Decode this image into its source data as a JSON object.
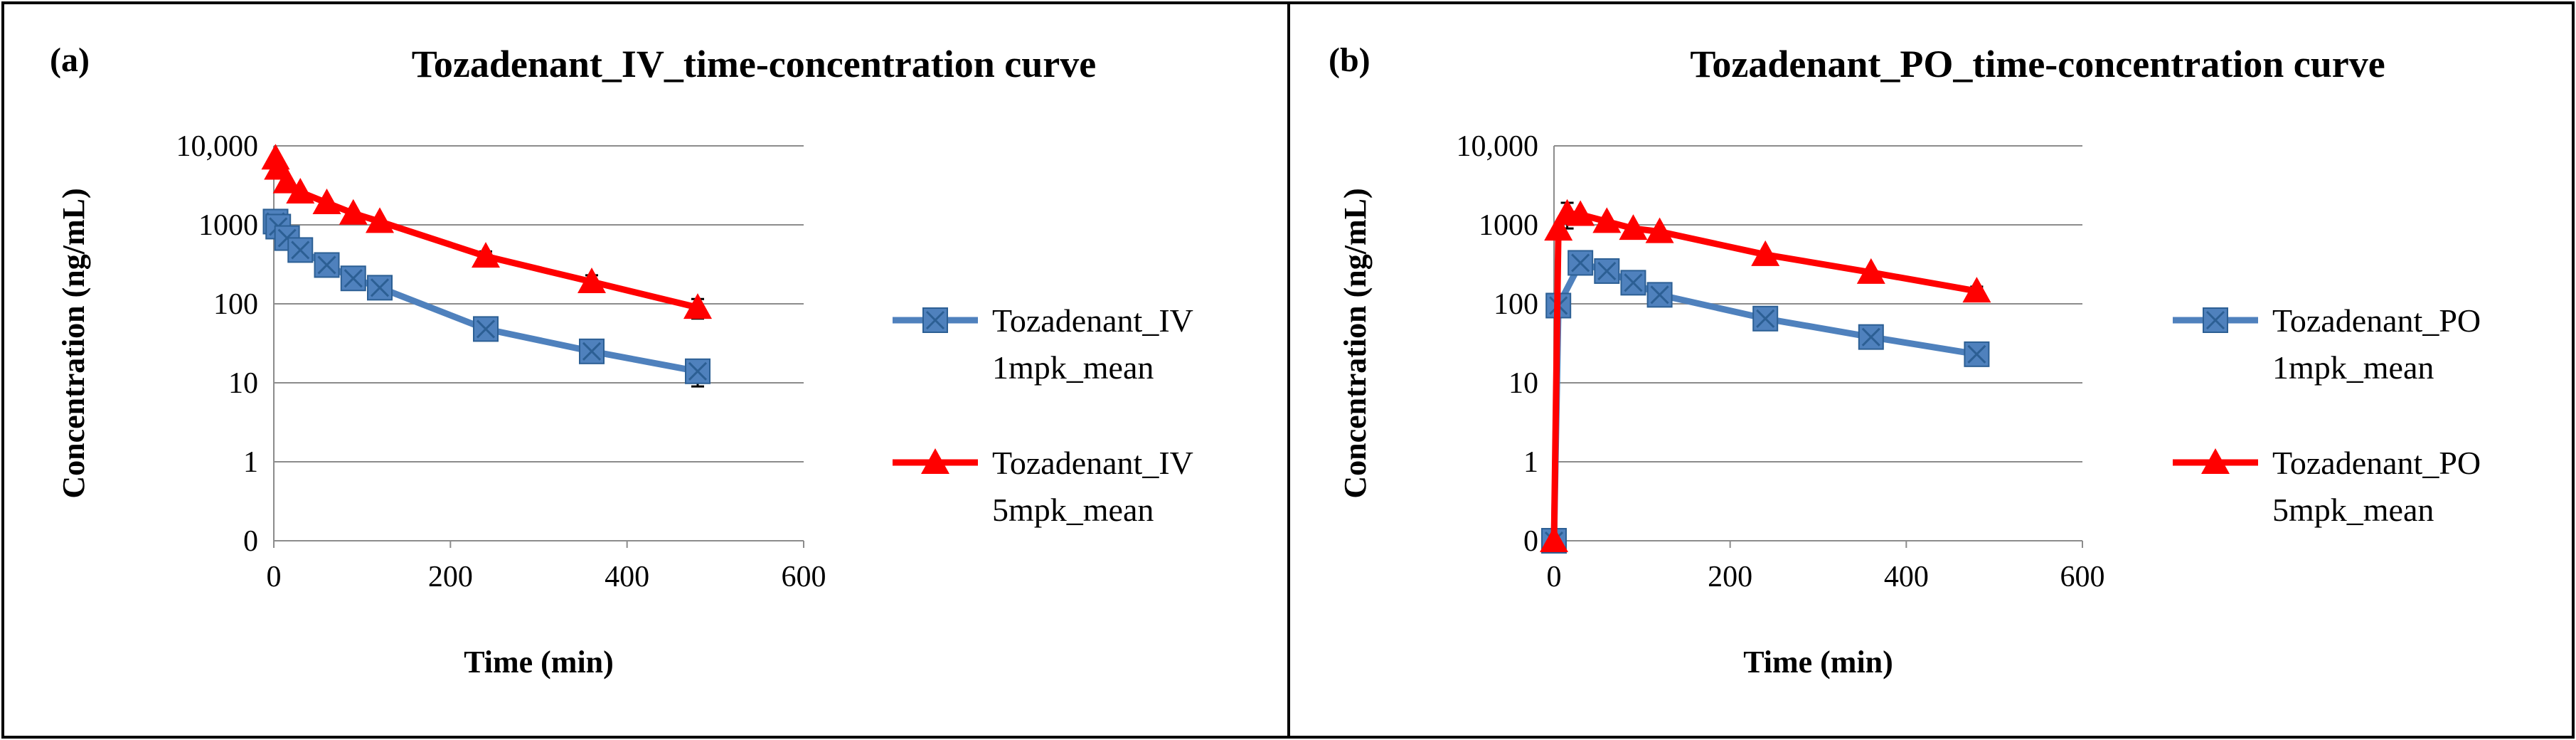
{
  "chart_data": [
    {
      "type": "line",
      "panel_label": "(a)",
      "title": "Tozadenant_IV_time-concentration curve",
      "xlabel": "Time (min)",
      "ylabel": "Concentration (ng/mL)",
      "xlim": [
        0,
        600
      ],
      "ylim": [
        0.1,
        10000
      ],
      "y_scale": "log",
      "x_ticks": [
        0,
        200,
        400,
        600
      ],
      "y_ticks": [
        {
          "value": 0.1,
          "label": "0"
        },
        {
          "value": 1,
          "label": "1"
        },
        {
          "value": 10,
          "label": "10"
        },
        {
          "value": 100,
          "label": "100"
        },
        {
          "value": 1000,
          "label": "1000"
        },
        {
          "value": 10000,
          "label": "10,000"
        }
      ],
      "grid": "horizontal",
      "legend_position": "right",
      "series": [
        {
          "legend": [
            "Tozadenant_IV",
            "1mpk_mean"
          ],
          "color": "#4f81bd",
          "marker": "square",
          "x": [
            2,
            5,
            15,
            30,
            60,
            90,
            120,
            240,
            360,
            480
          ],
          "y": [
            1100,
            950,
            680,
            480,
            310,
            210,
            160,
            48,
            25,
            14
          ],
          "err": [
            250,
            0,
            0,
            0,
            0,
            0,
            0,
            0,
            0,
            5
          ]
        },
        {
          "legend": [
            "Tozadenant_IV",
            "5mpk_mean"
          ],
          "color": "#ff0000",
          "marker": "triangle",
          "x": [
            2,
            5,
            15,
            30,
            60,
            90,
            120,
            240,
            360,
            480
          ],
          "y": [
            7000,
            5200,
            3500,
            2600,
            1900,
            1400,
            1100,
            400,
            190,
            90
          ],
          "err": [
            0,
            0,
            0,
            0,
            0,
            0,
            0,
            60,
            40,
            25
          ]
        }
      ]
    },
    {
      "type": "line",
      "panel_label": "(b)",
      "title": "Tozadenant_PO_time-concentration curve",
      "xlabel": "Time (min)",
      "ylabel": "Concentration (ng/mL)",
      "xlim": [
        0,
        600
      ],
      "ylim": [
        0.1,
        10000
      ],
      "y_scale": "log",
      "x_ticks": [
        0,
        200,
        400,
        600
      ],
      "y_ticks": [
        {
          "value": 0.1,
          "label": "0"
        },
        {
          "value": 1,
          "label": "1"
        },
        {
          "value": 10,
          "label": "10"
        },
        {
          "value": 100,
          "label": "100"
        },
        {
          "value": 1000,
          "label": "1000"
        },
        {
          "value": 10000,
          "label": "10,000"
        }
      ],
      "grid": "horizontal",
      "legend_position": "right",
      "series": [
        {
          "legend": [
            "Tozadenant_PO",
            "1mpk_mean"
          ],
          "color": "#4f81bd",
          "marker": "square",
          "x": [
            0,
            5,
            30,
            60,
            90,
            120,
            240,
            360,
            480
          ],
          "y": [
            0.1,
            95,
            330,
            260,
            185,
            130,
            65,
            38,
            23
          ],
          "err": [
            0,
            0,
            0,
            0,
            0,
            0,
            0,
            0,
            0
          ]
        },
        {
          "legend": [
            "Tozadenant_PO",
            "5mpk_mean"
          ],
          "color": "#ff0000",
          "marker": "triangle",
          "x": [
            0,
            5,
            15,
            30,
            60,
            90,
            120,
            240,
            360,
            480
          ],
          "y": [
            0.1,
            880,
            1400,
            1350,
            1100,
            900,
            820,
            420,
            250,
            145
          ],
          "err": [
            0,
            0,
            500,
            0,
            0,
            0,
            0,
            0,
            0,
            20
          ]
        }
      ]
    }
  ]
}
